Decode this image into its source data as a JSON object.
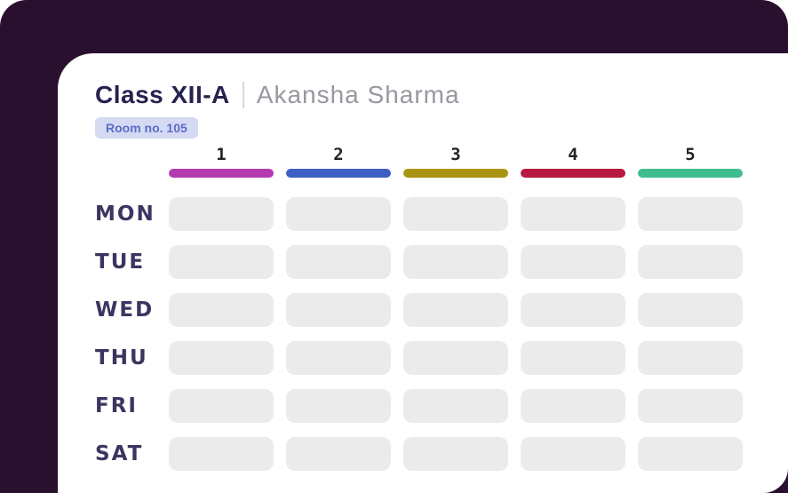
{
  "card": {
    "title": "Class XII-A",
    "teacher": "Akansha Sharma",
    "room_badge": "Room no. 105"
  },
  "timetable": {
    "periods": [
      {
        "label": "1",
        "color": "#b43ab0"
      },
      {
        "label": "2",
        "color": "#3e60c4"
      },
      {
        "label": "3",
        "color": "#ab9314"
      },
      {
        "label": "4",
        "color": "#b81940"
      },
      {
        "label": "5",
        "color": "#3fbd8e"
      }
    ],
    "days": [
      "MON",
      "TUE",
      "WED",
      "THU",
      "FRI",
      "SAT"
    ],
    "cells": [
      [
        "",
        "",
        "",
        "",
        ""
      ],
      [
        "",
        "",
        "",
        "",
        ""
      ],
      [
        "",
        "",
        "",
        "",
        ""
      ],
      [
        "",
        "",
        "",
        "",
        ""
      ],
      [
        "",
        "",
        "",
        "",
        ""
      ],
      [
        "",
        "",
        "",
        "",
        ""
      ]
    ]
  },
  "colors": {
    "background": "#2a102f",
    "card": "#ffffff",
    "title_text": "#262250",
    "teacher_text": "#98979f",
    "badge_bg": "#d3daf2",
    "badge_text": "#5d6cc6",
    "day_text": "#3b3560",
    "cell_bg": "#ebebeb"
  }
}
